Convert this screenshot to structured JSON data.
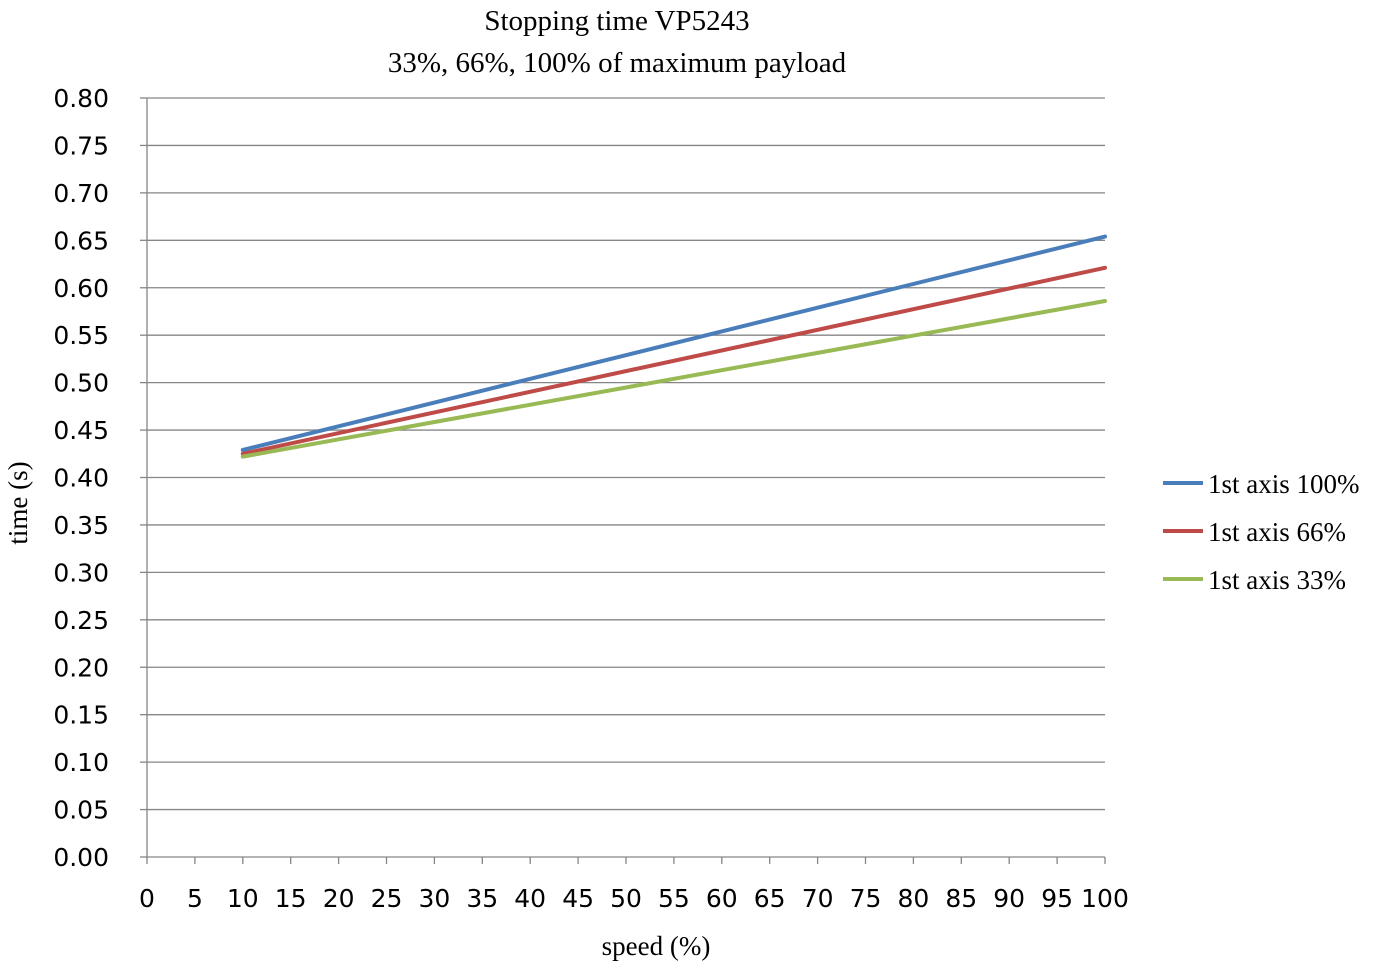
{
  "chart_data": {
    "type": "line",
    "title": "Stopping time VP5243",
    "subtitle": "33%, 66%, 100% of maximum payload",
    "xlabel": "speed (%)",
    "ylabel": "time (s)",
    "xlim": [
      0,
      100
    ],
    "ylim": [
      0,
      0.8
    ],
    "x_ticks": [
      "0",
      "5",
      "10",
      "15",
      "20",
      "25",
      "30",
      "35",
      "40",
      "45",
      "50",
      "55",
      "60",
      "65",
      "70",
      "75",
      "80",
      "85",
      "90",
      "95",
      "100"
    ],
    "y_ticks": [
      "0.00",
      "0.05",
      "0.10",
      "0.15",
      "0.20",
      "0.25",
      "0.30",
      "0.35",
      "0.40",
      "0.45",
      "0.50",
      "0.55",
      "0.60",
      "0.65",
      "0.70",
      "0.75",
      "0.80"
    ],
    "grid": true,
    "legend_position": "right",
    "series": [
      {
        "name": "1st axis 100%",
        "color": "#4a7ebb",
        "x": [
          10,
          100
        ],
        "y": [
          0.429,
          0.654
        ]
      },
      {
        "name": "1st axis 66%",
        "color": "#be4b48",
        "x": [
          10,
          100
        ],
        "y": [
          0.425,
          0.621
        ]
      },
      {
        "name": "1st axis 33%",
        "color": "#98b954",
        "x": [
          10,
          100
        ],
        "y": [
          0.422,
          0.586
        ]
      }
    ]
  }
}
